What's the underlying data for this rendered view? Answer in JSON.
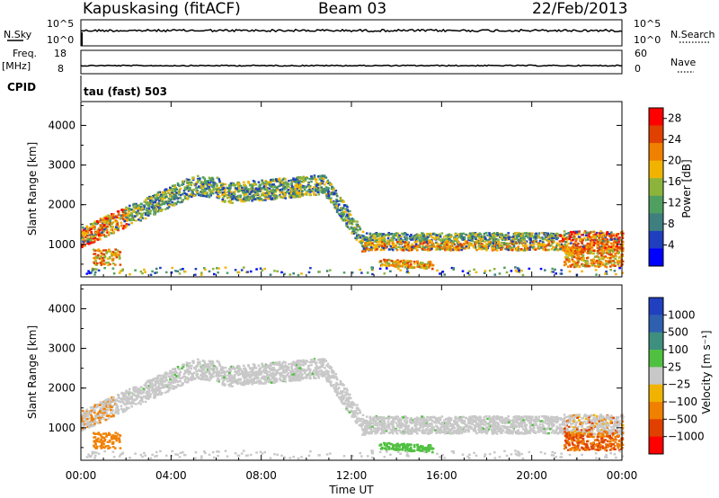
{
  "header": {
    "station": "Kapuskasing (fitACF)",
    "beam": "Beam 03",
    "date": "22/Feb/2013"
  },
  "top_panels": {
    "nsky_label": "N.Sky",
    "nsky_ticks": [
      "10^5",
      "10^0"
    ],
    "nsearch_label": "N.Search",
    "nsearch_ticks": [
      "10^5",
      "10^0"
    ],
    "freq_label": "Freq.",
    "freq_unit": "[MHz]",
    "freq_ticks": [
      "18",
      "8"
    ],
    "nave_label": "Nave",
    "nave_ticks": [
      "60",
      "0"
    ],
    "cpid_label": "CPID",
    "cpid_text": "tau (fast) 503"
  },
  "chart_data": [
    {
      "type": "heatmap",
      "title": "",
      "xlabel": "",
      "ylabel": "Slant Range [km]",
      "xlim": [
        0,
        24
      ],
      "ylim": [
        180,
        4600
      ],
      "yticks": [
        1000,
        2000,
        3000,
        4000
      ],
      "colorbar_label": "Power [dB]",
      "colorbar_ticks": [
        "4",
        "8",
        "12",
        "16",
        "20",
        "24",
        "28"
      ],
      "colorbar_range": [
        0,
        30
      ],
      "colors": [
        "#0000ff",
        "#1f3fbf",
        "#3f7f7f",
        "#4fa060",
        "#8cb43c",
        "#f0b400",
        "#f08000",
        "#e04000",
        "#ff0000"
      ]
    },
    {
      "type": "heatmap",
      "title": "",
      "xlabel": "Time UT",
      "ylabel": "Slant Range [km]",
      "xlim": [
        0,
        24
      ],
      "ylim": [
        180,
        4600
      ],
      "yticks": [
        1000,
        2000,
        3000,
        4000
      ],
      "xticks": [
        "00:00",
        "04:00",
        "08:00",
        "12:00",
        "16:00",
        "20:00",
        "00:00"
      ],
      "colorbar_label": "Velocity [m s⁻¹]",
      "colorbar_ticks": [
        "1000",
        "500",
        "100",
        "25",
        "−25",
        "−100",
        "−500",
        "−1000"
      ],
      "colors": [
        "#2040c0",
        "#2f60b0",
        "#3f8f7f",
        "#50c040",
        "#c8c8c8",
        "#f0b400",
        "#f08000",
        "#e04000",
        "#ff0000"
      ]
    }
  ]
}
